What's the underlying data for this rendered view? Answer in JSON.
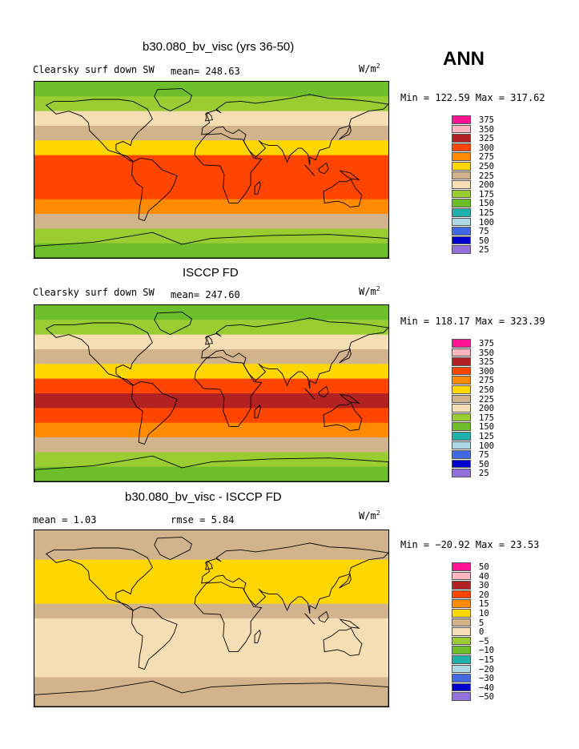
{
  "season": "ANN",
  "units": "W/m",
  "units_sup": "2",
  "panels": [
    {
      "title": "b30.080_bv_visc (yrs 36-50)",
      "left_label": "Clearsky surf down SW",
      "stat1": "mean= 248.63",
      "stat2": "",
      "minmax": "Min = 122.59 Max = 317.62"
    },
    {
      "title": "ISCCP FD",
      "left_label": "Clearsky surf down SW",
      "stat1": "mean= 247.60",
      "stat2": "",
      "minmax": "Min = 118.17 Max = 323.39"
    },
    {
      "title": "b30.080_bv_visc - ISCCP FD",
      "left_label": "mean =    1.03",
      "stat1": "rmse =    5.84",
      "stat2": "",
      "minmax": "Min = −20.92 Max =  23.53"
    }
  ],
  "legend_abs": {
    "labels": [
      "375",
      "350",
      "325",
      "300",
      "275",
      "250",
      "225",
      "200",
      "175",
      "150",
      "125",
      "100",
      "75",
      "50",
      "25"
    ],
    "colors": [
      "#ff1493",
      "#ffb6c1",
      "#b22222",
      "#ff4500",
      "#ff8c00",
      "#ffd700",
      "#d2b48c",
      "#f5deb3",
      "#9acd32",
      "#6cbf2a",
      "#20b2aa",
      "#add8e6",
      "#4169e1",
      "#0000cd",
      "#9370db"
    ]
  },
  "legend_diff": {
    "labels": [
      "50",
      "40",
      "30",
      "20",
      "15",
      "10",
      "5",
      "0",
      "−5",
      "−10",
      "−15",
      "−20",
      "−30",
      "−40",
      "−50"
    ],
    "colors": [
      "#ff1493",
      "#ffb6c1",
      "#b22222",
      "#ff4500",
      "#ff8c00",
      "#ffd700",
      "#d2b48c",
      "#f5deb3",
      "#9acd32",
      "#6cbf2a",
      "#20b2aa",
      "#add8e6",
      "#4169e1",
      "#0000cd",
      "#9370db"
    ]
  },
  "chart_data": [
    {
      "type": "heatmap",
      "title": "b30.080_bv_visc (yrs 36-50)",
      "variable": "Clearsky surf down SW",
      "units": "W/m^2",
      "mean": 248.63,
      "min": 122.59,
      "max": 317.62,
      "contour_levels": [
        25,
        50,
        75,
        100,
        125,
        150,
        175,
        200,
        225,
        250,
        275,
        300,
        325,
        350,
        375
      ],
      "zonal_bands_latitude": [
        90,
        75,
        60,
        45,
        30,
        15,
        0,
        -15,
        -30,
        -45,
        -60,
        -75,
        -90
      ],
      "zonal_band_values": [
        130,
        150,
        175,
        205,
        240,
        280,
        295,
        285,
        255,
        215,
        165,
        140
      ]
    },
    {
      "type": "heatmap",
      "title": "ISCCP FD",
      "variable": "Clearsky surf down SW",
      "units": "W/m^2",
      "mean": 247.6,
      "min": 118.17,
      "max": 323.39,
      "contour_levels": [
        25,
        50,
        75,
        100,
        125,
        150,
        175,
        200,
        225,
        250,
        275,
        300,
        325,
        350,
        375
      ],
      "zonal_bands_latitude": [
        90,
        75,
        60,
        45,
        30,
        15,
        0,
        -15,
        -30,
        -45,
        -60,
        -75,
        -90
      ],
      "zonal_band_values": [
        125,
        150,
        175,
        210,
        245,
        285,
        305,
        290,
        255,
        215,
        165,
        135
      ]
    },
    {
      "type": "heatmap",
      "title": "b30.080_bv_visc - ISCCP FD",
      "units": "W/m^2",
      "mean": 1.03,
      "rmse": 5.84,
      "min": -20.92,
      "max": 23.53,
      "contour_levels": [
        -50,
        -40,
        -30,
        -20,
        -15,
        -10,
        -5,
        0,
        5,
        10,
        15,
        20,
        30,
        40,
        50
      ],
      "zonal_bands_latitude": [
        90,
        75,
        60,
        45,
        30,
        15,
        0,
        -15,
        -30,
        -45,
        -60,
        -75,
        -90
      ],
      "zonal_band_values": [
        0,
        2,
        6,
        8,
        6,
        2,
        -3,
        -4,
        -2,
        -3,
        0,
        2
      ]
    }
  ]
}
